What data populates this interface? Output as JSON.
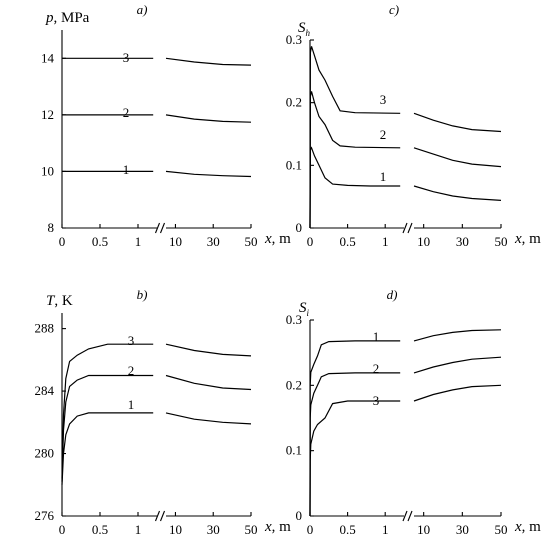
{
  "chart_data": [
    {
      "id": "a",
      "panel_label": "a)",
      "type": "line",
      "ylabel_var": "p",
      "ylabel_unit": ", MPa",
      "xlabel_var": "x",
      "xlabel_unit": ", m",
      "ylim": [
        8,
        15
      ],
      "yticks": [
        8,
        10,
        12,
        14
      ],
      "x_segments": [
        {
          "range": [
            0,
            1.25
          ],
          "ticks": [
            0,
            0.5,
            1
          ],
          "tick_labels": [
            "0",
            "0.5",
            "1"
          ]
        },
        {
          "range": [
            5,
            50
          ],
          "ticks": [
            10,
            30,
            50
          ],
          "tick_labels": [
            "10",
            "30",
            "50"
          ]
        }
      ],
      "series": [
        {
          "label": "1",
          "near": [
            [
              0,
              10.0
            ],
            [
              0.5,
              10.0
            ],
            [
              1.2,
              10.0
            ]
          ],
          "far": [
            [
              5,
              10.0
            ],
            [
              20,
              9.9
            ],
            [
              35,
              9.85
            ],
            [
              50,
              9.82
            ]
          ]
        },
        {
          "label": "2",
          "near": [
            [
              0,
              12.0
            ],
            [
              0.5,
              12.0
            ],
            [
              1.2,
              12.0
            ]
          ],
          "far": [
            [
              5,
              12.0
            ],
            [
              20,
              11.85
            ],
            [
              35,
              11.77
            ],
            [
              50,
              11.74
            ]
          ]
        },
        {
          "label": "3",
          "near": [
            [
              0,
              14.0
            ],
            [
              0.5,
              14.0
            ],
            [
              1.2,
              14.0
            ]
          ],
          "far": [
            [
              5,
              14.0
            ],
            [
              20,
              13.87
            ],
            [
              35,
              13.78
            ],
            [
              50,
              13.76
            ]
          ]
        }
      ]
    },
    {
      "id": "c",
      "panel_label": "c)",
      "type": "line",
      "ylabel_var": "S",
      "ylabel_sub": "h",
      "ylabel_unit": "",
      "xlabel_var": "x",
      "xlabel_unit": ", m",
      "ylim": [
        0,
        0.3
      ],
      "yticks": [
        0,
        0.1,
        0.2,
        0.3
      ],
      "x_segments": [
        {
          "range": [
            0,
            1.25
          ],
          "ticks": [
            0,
            0.5,
            1
          ],
          "tick_labels": [
            "0",
            "0.5",
            "1"
          ]
        },
        {
          "range": [
            5,
            50
          ],
          "ticks": [
            10,
            30,
            50
          ],
          "tick_labels": [
            "10",
            "30",
            "50"
          ]
        }
      ],
      "series": [
        {
          "label": "1",
          "near": [
            [
              0,
              0.0
            ],
            [
              0.005,
              0.125
            ],
            [
              0.02,
              0.128
            ],
            [
              0.06,
              0.115
            ],
            [
              0.12,
              0.1
            ],
            [
              0.2,
              0.08
            ],
            [
              0.3,
              0.07
            ],
            [
              0.5,
              0.068
            ],
            [
              0.8,
              0.067
            ],
            [
              1.2,
              0.067
            ]
          ],
          "far": [
            [
              5,
              0.067
            ],
            [
              15,
              0.058
            ],
            [
              25,
              0.051
            ],
            [
              35,
              0.047
            ],
            [
              50,
              0.044
            ]
          ]
        },
        {
          "label": "2",
          "near": [
            [
              0,
              0.0
            ],
            [
              0.005,
              0.21
            ],
            [
              0.02,
              0.218
            ],
            [
              0.06,
              0.2
            ],
            [
              0.12,
              0.178
            ],
            [
              0.2,
              0.165
            ],
            [
              0.3,
              0.14
            ],
            [
              0.4,
              0.131
            ],
            [
              0.6,
              0.129
            ],
            [
              1.2,
              0.128
            ]
          ],
          "far": [
            [
              5,
              0.128
            ],
            [
              15,
              0.118
            ],
            [
              25,
              0.108
            ],
            [
              35,
              0.102
            ],
            [
              50,
              0.098
            ]
          ]
        },
        {
          "label": "3",
          "near": [
            [
              0,
              0.0
            ],
            [
              0.005,
              0.28
            ],
            [
              0.02,
              0.29
            ],
            [
              0.06,
              0.275
            ],
            [
              0.12,
              0.252
            ],
            [
              0.2,
              0.236
            ],
            [
              0.3,
              0.21
            ],
            [
              0.4,
              0.187
            ],
            [
              0.6,
              0.184
            ],
            [
              1.2,
              0.183
            ]
          ],
          "far": [
            [
              5,
              0.183
            ],
            [
              15,
              0.172
            ],
            [
              25,
              0.163
            ],
            [
              35,
              0.157
            ],
            [
              50,
              0.154
            ]
          ]
        }
      ]
    },
    {
      "id": "b",
      "panel_label": "b)",
      "type": "line",
      "ylabel_var": "T",
      "ylabel_unit": ", K",
      "xlabel_var": "x",
      "xlabel_unit": ", m",
      "ylim": [
        276,
        289
      ],
      "yticks": [
        276,
        280,
        284,
        288
      ],
      "x_segments": [
        {
          "range": [
            0,
            1.25
          ],
          "ticks": [
            0,
            0.5,
            1
          ],
          "tick_labels": [
            "0",
            "0.5",
            "1"
          ]
        },
        {
          "range": [
            5,
            50
          ],
          "ticks": [
            10,
            30,
            50
          ],
          "tick_labels": [
            "10",
            "30",
            "50"
          ]
        }
      ],
      "series": [
        {
          "label": "1",
          "near": [
            [
              0,
              278.0
            ],
            [
              0.02,
              280.0
            ],
            [
              0.05,
              281.2
            ],
            [
              0.1,
              281.9
            ],
            [
              0.2,
              282.4
            ],
            [
              0.35,
              282.6
            ],
            [
              0.6,
              282.6
            ],
            [
              1.2,
              282.6
            ]
          ],
          "far": [
            [
              5,
              282.6
            ],
            [
              20,
              282.2
            ],
            [
              35,
              282.0
            ],
            [
              50,
              281.9
            ]
          ]
        },
        {
          "label": "2",
          "near": [
            [
              0,
              278.2
            ],
            [
              0.02,
              281.5
            ],
            [
              0.05,
              283.3
            ],
            [
              0.1,
              284.3
            ],
            [
              0.2,
              284.7
            ],
            [
              0.35,
              285.0
            ],
            [
              0.6,
              285.0
            ],
            [
              1.2,
              285.0
            ]
          ],
          "far": [
            [
              5,
              285.0
            ],
            [
              20,
              284.5
            ],
            [
              35,
              284.2
            ],
            [
              50,
              284.1
            ]
          ]
        },
        {
          "label": "3",
          "near": [
            [
              0,
              278.4
            ],
            [
              0.02,
              282.5
            ],
            [
              0.05,
              284.8
            ],
            [
              0.1,
              285.9
            ],
            [
              0.2,
              286.3
            ],
            [
              0.35,
              286.7
            ],
            [
              0.6,
              287.0
            ],
            [
              1.2,
              287.0
            ]
          ],
          "far": [
            [
              5,
              287.0
            ],
            [
              20,
              286.6
            ],
            [
              35,
              286.35
            ],
            [
              50,
              286.25
            ]
          ]
        }
      ]
    },
    {
      "id": "d",
      "panel_label": "d)",
      "type": "line",
      "ylabel_var": "S",
      "ylabel_sub": "i",
      "ylabel_unit": "",
      "xlabel_var": "x",
      "xlabel_unit": ", m",
      "ylim": [
        0,
        0.3
      ],
      "yticks": [
        0,
        0.1,
        0.2,
        0.3
      ],
      "x_segments": [
        {
          "range": [
            0,
            1.25
          ],
          "ticks": [
            0,
            0.5,
            1
          ],
          "tick_labels": [
            "0",
            "0.5",
            "1"
          ]
        },
        {
          "range": [
            5,
            50
          ],
          "ticks": [
            10,
            30,
            50
          ],
          "tick_labels": [
            "10",
            "30",
            "50"
          ]
        }
      ],
      "series": [
        {
          "label": "1",
          "near": [
            [
              0,
              0.0
            ],
            [
              0.003,
              0.2
            ],
            [
              0.01,
              0.22
            ],
            [
              0.05,
              0.232
            ],
            [
              0.1,
              0.245
            ],
            [
              0.15,
              0.262
            ],
            [
              0.25,
              0.267
            ],
            [
              0.6,
              0.268
            ],
            [
              1.2,
              0.268
            ]
          ],
          "far": [
            [
              5,
              0.268
            ],
            [
              15,
              0.276
            ],
            [
              25,
              0.281
            ],
            [
              35,
              0.284
            ],
            [
              50,
              0.285
            ]
          ]
        },
        {
          "label": "2",
          "near": [
            [
              0,
              0.0
            ],
            [
              0.003,
              0.15
            ],
            [
              0.01,
              0.17
            ],
            [
              0.05,
              0.188
            ],
            [
              0.1,
              0.2
            ],
            [
              0.15,
              0.213
            ],
            [
              0.25,
              0.218
            ],
            [
              0.6,
              0.219
            ],
            [
              1.2,
              0.219
            ]
          ],
          "far": [
            [
              5,
              0.219
            ],
            [
              15,
              0.228
            ],
            [
              25,
              0.235
            ],
            [
              35,
              0.24
            ],
            [
              50,
              0.243
            ]
          ]
        },
        {
          "label": "3",
          "near": [
            [
              0,
              0.0
            ],
            [
              0.003,
              0.085
            ],
            [
              0.01,
              0.11
            ],
            [
              0.05,
              0.13
            ],
            [
              0.1,
              0.14
            ],
            [
              0.2,
              0.15
            ],
            [
              0.3,
              0.172
            ],
            [
              0.5,
              0.176
            ],
            [
              1.2,
              0.176
            ]
          ],
          "far": [
            [
              5,
              0.176
            ],
            [
              15,
              0.186
            ],
            [
              25,
              0.193
            ],
            [
              35,
              0.198
            ],
            [
              50,
              0.2
            ]
          ]
        }
      ]
    }
  ]
}
